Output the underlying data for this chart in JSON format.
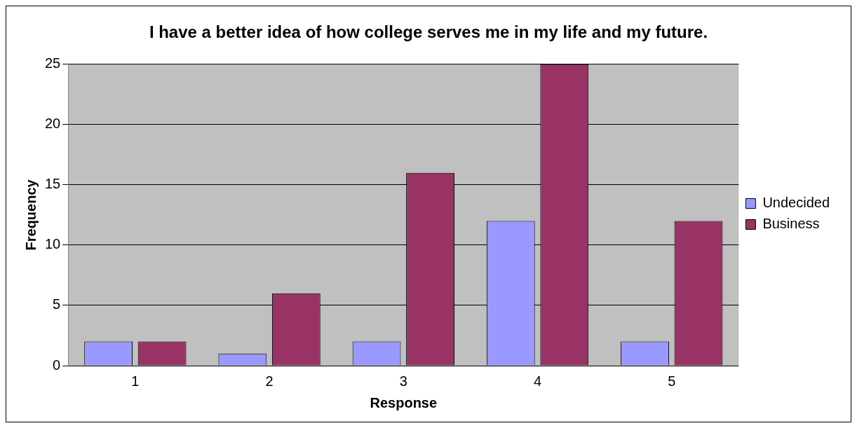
{
  "chart_data": {
    "type": "bar",
    "title": "I have a better idea of how college serves me in my life and my future.",
    "xlabel": "Response",
    "ylabel": "Frequency",
    "categories": [
      "1",
      "2",
      "3",
      "4",
      "5"
    ],
    "series": [
      {
        "name": "Undecided",
        "color": "#9999ff",
        "values": [
          2,
          1,
          2,
          12,
          2
        ]
      },
      {
        "name": "Business",
        "color": "#993366",
        "values": [
          2,
          6,
          16,
          25,
          12
        ]
      }
    ],
    "ylim": [
      0,
      25
    ],
    "yticks": [
      0,
      5,
      10,
      15,
      20,
      25
    ],
    "grid": "y",
    "legend": "right"
  }
}
